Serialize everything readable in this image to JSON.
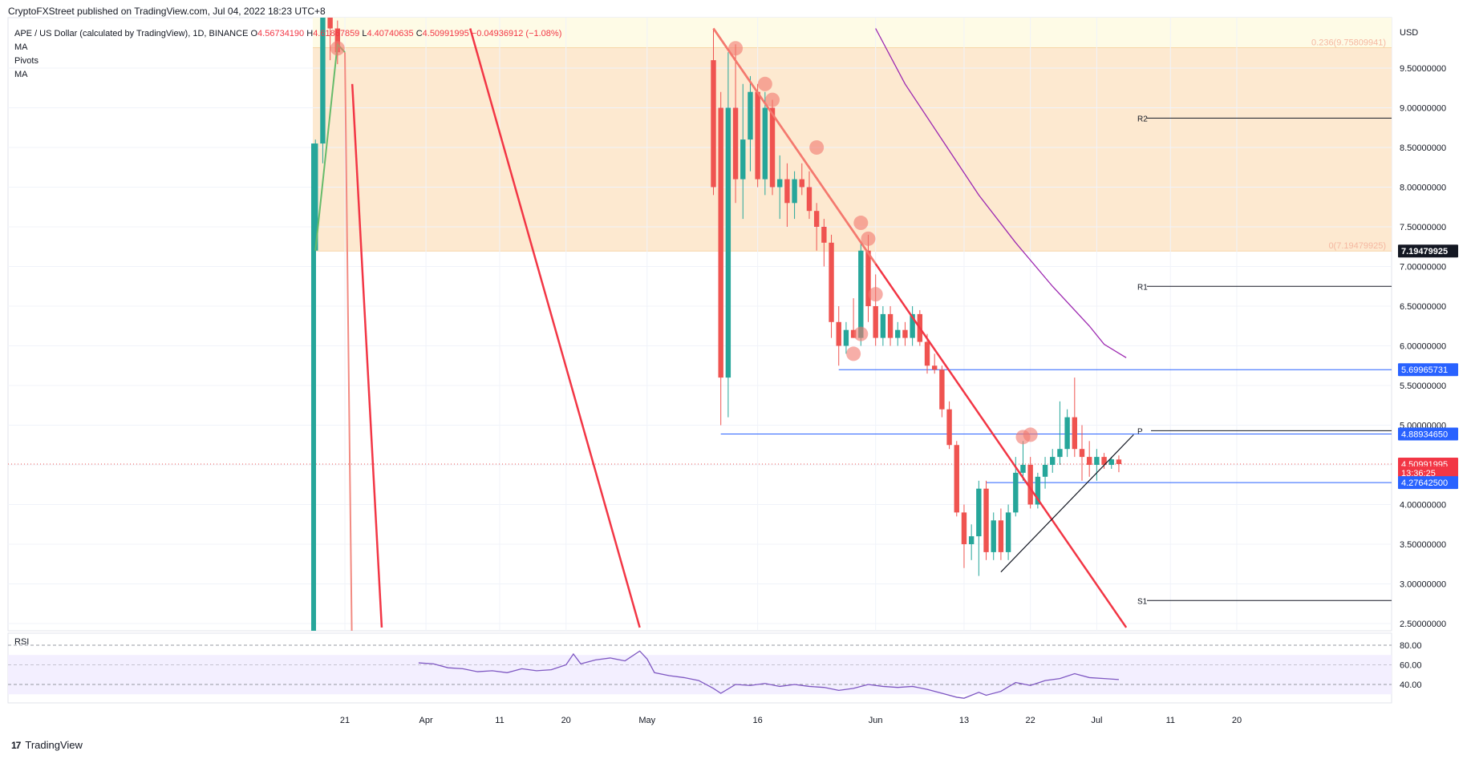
{
  "header": {
    "published": "CryptoFXStreet published on TradingView.com, Jul 04, 2022 18:23 UTC+8"
  },
  "legend": {
    "symbol": "APE / US Dollar (calculated by TradingView), 1D, BINANCE",
    "o_label": "O",
    "o_value": "4.56734190",
    "h_label": "H",
    "h_value": "4.61867859",
    "l_label": "L",
    "l_value": "4.40740635",
    "c_label": "C",
    "c_value": "4.50991995",
    "change": "−0.04936912 (−1.08%)",
    "indicators": [
      "MA",
      "Pivots",
      "MA"
    ]
  },
  "footer": {
    "brand": "TradingView",
    "logo": "17"
  },
  "colors": {
    "up": "#26a69a",
    "down": "#ef5350",
    "trendline": "#f23645",
    "ma": "#9c27b0",
    "blue": "#2962ff",
    "fib_band": "#fde9d0",
    "rsi": "#7e57c2"
  },
  "chart_data": {
    "type": "candlestick",
    "currency": "USD",
    "y_ticks": [
      "9.50000000",
      "9.00000000",
      "8.50000000",
      "8.00000000",
      "7.50000000",
      "7.00000000",
      "6.50000000",
      "6.00000000",
      "5.50000000",
      "5.00000000",
      "4.00000000",
      "3.50000000",
      "3.00000000",
      "2.50000000"
    ],
    "y_tick_values": [
      9.5,
      9.0,
      8.5,
      8.0,
      7.5,
      7.0,
      6.5,
      6.0,
      5.5,
      5.0,
      4.0,
      3.5,
      3.0,
      2.5
    ],
    "x_ticks": [
      "21",
      "Apr",
      "11",
      "20",
      "May",
      "16",
      "Jun",
      "13",
      "22",
      "Jul",
      "11",
      "20"
    ],
    "x_tick_dates": [
      "2022-03-21",
      "2022-04-01",
      "2022-04-11",
      "2022-04-20",
      "2022-05-01",
      "2022-05-16",
      "2022-06-01",
      "2022-06-13",
      "2022-06-22",
      "2022-07-01",
      "2022-07-11",
      "2022-07-20"
    ],
    "price_labels": [
      {
        "text": "7.19479925",
        "value": 7.19479925,
        "style": "dark"
      },
      {
        "text": "5.69965731",
        "value": 5.69965731,
        "style": "blue"
      },
      {
        "text": "4.88934650",
        "value": 4.8893465,
        "style": "blue"
      },
      {
        "text": "4.50991995",
        "value": 4.50991995,
        "style": "red"
      },
      {
        "text": "13:36:25",
        "value": 4.4,
        "style": "red-sub"
      },
      {
        "text": "4.27642500",
        "value": 4.276425,
        "style": "blue"
      }
    ],
    "fib_levels": [
      {
        "label": "0.236(9.75809941)",
        "value": 9.75809941
      },
      {
        "label": "0(7.19479925)",
        "value": 7.19479925
      }
    ],
    "pivots": [
      {
        "label": "R2",
        "value": 8.87
      },
      {
        "label": "R1",
        "value": 6.75
      },
      {
        "label": "P",
        "value": 4.93
      },
      {
        "label": "S1",
        "value": 2.79
      }
    ],
    "horizontal_lines": [
      {
        "value": 5.69965731,
        "from": "2022-05-27"
      },
      {
        "value": 4.8893465,
        "from": "2022-05-11"
      },
      {
        "value": 4.276425,
        "from": "2022-06-16"
      }
    ],
    "current_price": 4.50991995,
    "candles": [
      {
        "d": "2022-03-17",
        "o": 7.2,
        "h": 8.6,
        "l": 7.0,
        "c": 8.55
      },
      {
        "d": "2022-03-18",
        "o": 8.55,
        "h": 10.6,
        "l": 8.3,
        "c": 10.2
      },
      {
        "d": "2022-03-19",
        "o": 10.2,
        "h": 10.8,
        "l": 9.6,
        "c": 10.0
      },
      {
        "d": "2022-03-20",
        "o": 10.0,
        "h": 10.1,
        "l": 9.55,
        "c": 9.7
      },
      {
        "d": "2022-05-10",
        "o": 9.6,
        "h": 10.0,
        "l": 7.9,
        "c": 8.0
      },
      {
        "d": "2022-05-11",
        "o": 9.0,
        "h": 9.2,
        "l": 5.0,
        "c": 5.6
      },
      {
        "d": "2022-05-12",
        "o": 5.6,
        "h": 9.7,
        "l": 5.1,
        "c": 9.0
      },
      {
        "d": "2022-05-13",
        "o": 9.0,
        "h": 9.8,
        "l": 7.8,
        "c": 8.1
      },
      {
        "d": "2022-05-14",
        "o": 8.1,
        "h": 9.3,
        "l": 7.6,
        "c": 8.6
      },
      {
        "d": "2022-05-15",
        "o": 8.6,
        "h": 9.4,
        "l": 8.2,
        "c": 9.2
      },
      {
        "d": "2022-05-16",
        "o": 9.2,
        "h": 9.3,
        "l": 8.0,
        "c": 8.1
      },
      {
        "d": "2022-05-17",
        "o": 8.1,
        "h": 9.2,
        "l": 7.9,
        "c": 9.0
      },
      {
        "d": "2022-05-18",
        "o": 9.0,
        "h": 9.1,
        "l": 7.9,
        "c": 8.0
      },
      {
        "d": "2022-05-19",
        "o": 8.0,
        "h": 8.4,
        "l": 7.6,
        "c": 8.1
      },
      {
        "d": "2022-05-20",
        "o": 8.1,
        "h": 8.3,
        "l": 7.5,
        "c": 7.8
      },
      {
        "d": "2022-05-21",
        "o": 7.8,
        "h": 8.2,
        "l": 7.6,
        "c": 8.1
      },
      {
        "d": "2022-05-22",
        "o": 8.1,
        "h": 8.3,
        "l": 7.9,
        "c": 8.0
      },
      {
        "d": "2022-05-23",
        "o": 8.0,
        "h": 8.2,
        "l": 7.6,
        "c": 7.7
      },
      {
        "d": "2022-05-24",
        "o": 7.7,
        "h": 7.8,
        "l": 7.2,
        "c": 7.5
      },
      {
        "d": "2022-05-25",
        "o": 7.5,
        "h": 7.6,
        "l": 7.0,
        "c": 7.3
      },
      {
        "d": "2022-05-26",
        "o": 7.3,
        "h": 7.4,
        "l": 6.1,
        "c": 6.3
      },
      {
        "d": "2022-05-27",
        "o": 6.3,
        "h": 6.5,
        "l": 5.75,
        "c": 6.0
      },
      {
        "d": "2022-05-28",
        "o": 6.0,
        "h": 6.3,
        "l": 5.9,
        "c": 6.2
      },
      {
        "d": "2022-05-29",
        "o": 6.2,
        "h": 6.6,
        "l": 6.1,
        "c": 6.1
      },
      {
        "d": "2022-05-30",
        "o": 6.1,
        "h": 7.3,
        "l": 6.0,
        "c": 7.2
      },
      {
        "d": "2022-05-31",
        "o": 7.2,
        "h": 7.4,
        "l": 6.3,
        "c": 6.5
      },
      {
        "d": "2022-06-01",
        "o": 6.5,
        "h": 6.9,
        "l": 6.0,
        "c": 6.1
      },
      {
        "d": "2022-06-02",
        "o": 6.1,
        "h": 6.5,
        "l": 6.0,
        "c": 6.4
      },
      {
        "d": "2022-06-03",
        "o": 6.4,
        "h": 6.5,
        "l": 6.0,
        "c": 6.1
      },
      {
        "d": "2022-06-04",
        "o": 6.1,
        "h": 6.3,
        "l": 6.0,
        "c": 6.2
      },
      {
        "d": "2022-06-05",
        "o": 6.2,
        "h": 6.3,
        "l": 6.0,
        "c": 6.1
      },
      {
        "d": "2022-06-06",
        "o": 6.1,
        "h": 6.5,
        "l": 6.0,
        "c": 6.4
      },
      {
        "d": "2022-06-07",
        "o": 6.4,
        "h": 6.45,
        "l": 6.0,
        "c": 6.05
      },
      {
        "d": "2022-06-08",
        "o": 6.05,
        "h": 6.15,
        "l": 5.65,
        "c": 5.75
      },
      {
        "d": "2022-06-09",
        "o": 5.75,
        "h": 5.9,
        "l": 5.65,
        "c": 5.7
      },
      {
        "d": "2022-06-10",
        "o": 5.7,
        "h": 5.75,
        "l": 5.1,
        "c": 5.2
      },
      {
        "d": "2022-06-11",
        "o": 5.2,
        "h": 5.3,
        "l": 4.7,
        "c": 4.75
      },
      {
        "d": "2022-06-12",
        "o": 4.75,
        "h": 4.8,
        "l": 3.85,
        "c": 3.9
      },
      {
        "d": "2022-06-13",
        "o": 3.9,
        "h": 4.0,
        "l": 3.2,
        "c": 3.5
      },
      {
        "d": "2022-06-14",
        "o": 3.5,
        "h": 3.75,
        "l": 3.3,
        "c": 3.6
      },
      {
        "d": "2022-06-15",
        "o": 3.6,
        "h": 4.3,
        "l": 3.1,
        "c": 4.2
      },
      {
        "d": "2022-06-16",
        "o": 4.2,
        "h": 4.3,
        "l": 3.3,
        "c": 3.4
      },
      {
        "d": "2022-06-17",
        "o": 3.4,
        "h": 3.9,
        "l": 3.3,
        "c": 3.8
      },
      {
        "d": "2022-06-18",
        "o": 3.8,
        "h": 3.95,
        "l": 3.3,
        "c": 3.4
      },
      {
        "d": "2022-06-19",
        "o": 3.4,
        "h": 4.0,
        "l": 3.3,
        "c": 3.9
      },
      {
        "d": "2022-06-20",
        "o": 3.9,
        "h": 4.6,
        "l": 3.85,
        "c": 4.4
      },
      {
        "d": "2022-06-21",
        "o": 4.4,
        "h": 4.8,
        "l": 4.3,
        "c": 4.5
      },
      {
        "d": "2022-06-22",
        "o": 4.5,
        "h": 4.6,
        "l": 3.95,
        "c": 4.0
      },
      {
        "d": "2022-06-23",
        "o": 4.0,
        "h": 4.4,
        "l": 3.95,
        "c": 4.35
      },
      {
        "d": "2022-06-24",
        "o": 4.35,
        "h": 4.6,
        "l": 4.2,
        "c": 4.5
      },
      {
        "d": "2022-06-25",
        "o": 4.5,
        "h": 4.7,
        "l": 4.4,
        "c": 4.6
      },
      {
        "d": "2022-06-26",
        "o": 4.6,
        "h": 5.3,
        "l": 4.5,
        "c": 4.7
      },
      {
        "d": "2022-06-27",
        "o": 4.7,
        "h": 5.2,
        "l": 4.6,
        "c": 5.1
      },
      {
        "d": "2022-06-28",
        "o": 5.1,
        "h": 5.6,
        "l": 4.6,
        "c": 4.7
      },
      {
        "d": "2022-06-29",
        "o": 4.7,
        "h": 5.0,
        "l": 4.3,
        "c": 4.6
      },
      {
        "d": "2022-06-30",
        "o": 4.6,
        "h": 4.8,
        "l": 4.35,
        "c": 4.5
      },
      {
        "d": "2022-07-01",
        "o": 4.5,
        "h": 4.7,
        "l": 4.3,
        "c": 4.6
      },
      {
        "d": "2022-07-02",
        "o": 4.6,
        "h": 4.65,
        "l": 4.45,
        "c": 4.5
      },
      {
        "d": "2022-07-03",
        "o": 4.5,
        "h": 4.6,
        "l": 4.45,
        "c": 4.57
      },
      {
        "d": "2022-07-04",
        "o": 4.5673419,
        "h": 4.61867859,
        "l": 4.40740635,
        "c": 4.50991995
      }
    ],
    "ma_line": [
      {
        "d": "2022-06-01",
        "v": 10.0
      },
      {
        "d": "2022-06-05",
        "v": 9.3
      },
      {
        "d": "2022-06-10",
        "v": 8.6
      },
      {
        "d": "2022-06-15",
        "v": 7.9
      },
      {
        "d": "2022-06-20",
        "v": 7.3
      },
      {
        "d": "2022-06-25",
        "v": 6.75
      },
      {
        "d": "2022-06-30",
        "v": 6.25
      },
      {
        "d": "2022-07-02",
        "v": 6.02
      },
      {
        "d": "2022-07-05",
        "v": 5.85
      }
    ],
    "early_ma_line": [
      {
        "d": "2022-03-17",
        "v": 7.2
      },
      {
        "d": "2022-03-20",
        "v": 9.8
      },
      {
        "d": "2022-03-21",
        "v": 9.7
      },
      {
        "d": "2022-03-22",
        "v": 1.9
      }
    ],
    "trendlines": [
      {
        "name": "far-left",
        "p1": {
          "d": "2022-03-22",
          "v": 9.3
        },
        "p2": {
          "d": "2022-03-26",
          "v": 2.45
        }
      },
      {
        "name": "middle",
        "p1": {
          "d": "2022-04-07",
          "v": 10.0
        },
        "p2": {
          "d": "2022-04-30",
          "v": 2.45
        }
      },
      {
        "name": "main-downtrend",
        "p1": {
          "d": "2022-05-10",
          "v": 10.0
        },
        "p2": {
          "d": "2022-07-05",
          "v": 2.45
        }
      }
    ],
    "support_trendline": {
      "p1": {
        "d": "2022-06-18",
        "v": 3.15
      },
      "p2": {
        "d": "2022-07-06",
        "v": 4.88
      }
    },
    "markers": [
      {
        "d": "2022-03-20",
        "v": 9.75
      },
      {
        "d": "2022-05-13",
        "v": 9.75
      },
      {
        "d": "2022-05-17",
        "v": 9.3
      },
      {
        "d": "2022-05-18",
        "v": 9.1
      },
      {
        "d": "2022-05-24",
        "v": 8.5
      },
      {
        "d": "2022-05-30",
        "v": 7.55
      },
      {
        "d": "2022-05-31",
        "v": 7.35
      },
      {
        "d": "2022-06-01",
        "v": 6.65
      },
      {
        "d": "2022-05-30",
        "v": 6.15
      },
      {
        "d": "2022-05-29",
        "v": 5.9
      },
      {
        "d": "2022-06-21",
        "v": 4.85
      },
      {
        "d": "2022-06-22",
        "v": 4.88
      }
    ],
    "rsi": {
      "label": "RSI",
      "ticks": [
        "80.00",
        "60.00",
        "40.00"
      ],
      "tick_values": [
        80,
        60,
        40
      ],
      "band": [
        30,
        70
      ],
      "values": [
        {
          "d": "2022-03-31",
          "v": 62
        },
        {
          "d": "2022-04-02",
          "v": 61
        },
        {
          "d": "2022-04-04",
          "v": 57
        },
        {
          "d": "2022-04-06",
          "v": 56
        },
        {
          "d": "2022-04-08",
          "v": 53
        },
        {
          "d": "2022-04-10",
          "v": 54
        },
        {
          "d": "2022-04-12",
          "v": 52
        },
        {
          "d": "2022-04-14",
          "v": 56
        },
        {
          "d": "2022-04-16",
          "v": 54
        },
        {
          "d": "2022-04-18",
          "v": 55
        },
        {
          "d": "2022-04-20",
          "v": 60
        },
        {
          "d": "2022-04-21",
          "v": 71
        },
        {
          "d": "2022-04-22",
          "v": 61
        },
        {
          "d": "2022-04-24",
          "v": 65
        },
        {
          "d": "2022-04-26",
          "v": 67
        },
        {
          "d": "2022-04-28",
          "v": 64
        },
        {
          "d": "2022-04-30",
          "v": 74
        },
        {
          "d": "2022-05-01",
          "v": 66
        },
        {
          "d": "2022-05-02",
          "v": 52
        },
        {
          "d": "2022-05-04",
          "v": 49
        },
        {
          "d": "2022-05-06",
          "v": 47
        },
        {
          "d": "2022-05-08",
          "v": 44
        },
        {
          "d": "2022-05-10",
          "v": 36
        },
        {
          "d": "2022-05-11",
          "v": 31
        },
        {
          "d": "2022-05-13",
          "v": 40
        },
        {
          "d": "2022-05-15",
          "v": 39
        },
        {
          "d": "2022-05-17",
          "v": 41
        },
        {
          "d": "2022-05-19",
          "v": 38
        },
        {
          "d": "2022-05-21",
          "v": 40
        },
        {
          "d": "2022-05-23",
          "v": 38
        },
        {
          "d": "2022-05-25",
          "v": 37
        },
        {
          "d": "2022-05-27",
          "v": 34
        },
        {
          "d": "2022-05-29",
          "v": 36
        },
        {
          "d": "2022-05-31",
          "v": 40
        },
        {
          "d": "2022-06-02",
          "v": 38
        },
        {
          "d": "2022-06-04",
          "v": 37
        },
        {
          "d": "2022-06-06",
          "v": 38
        },
        {
          "d": "2022-06-08",
          "v": 35
        },
        {
          "d": "2022-06-10",
          "v": 31
        },
        {
          "d": "2022-06-12",
          "v": 27
        },
        {
          "d": "2022-06-13",
          "v": 26
        },
        {
          "d": "2022-06-15",
          "v": 32
        },
        {
          "d": "2022-06-16",
          "v": 29
        },
        {
          "d": "2022-06-18",
          "v": 33
        },
        {
          "d": "2022-06-20",
          "v": 42
        },
        {
          "d": "2022-06-22",
          "v": 39
        },
        {
          "d": "2022-06-24",
          "v": 44
        },
        {
          "d": "2022-06-26",
          "v": 46
        },
        {
          "d": "2022-06-28",
          "v": 51
        },
        {
          "d": "2022-06-30",
          "v": 47
        },
        {
          "d": "2022-07-02",
          "v": 46
        },
        {
          "d": "2022-07-04",
          "v": 45
        }
      ]
    }
  }
}
